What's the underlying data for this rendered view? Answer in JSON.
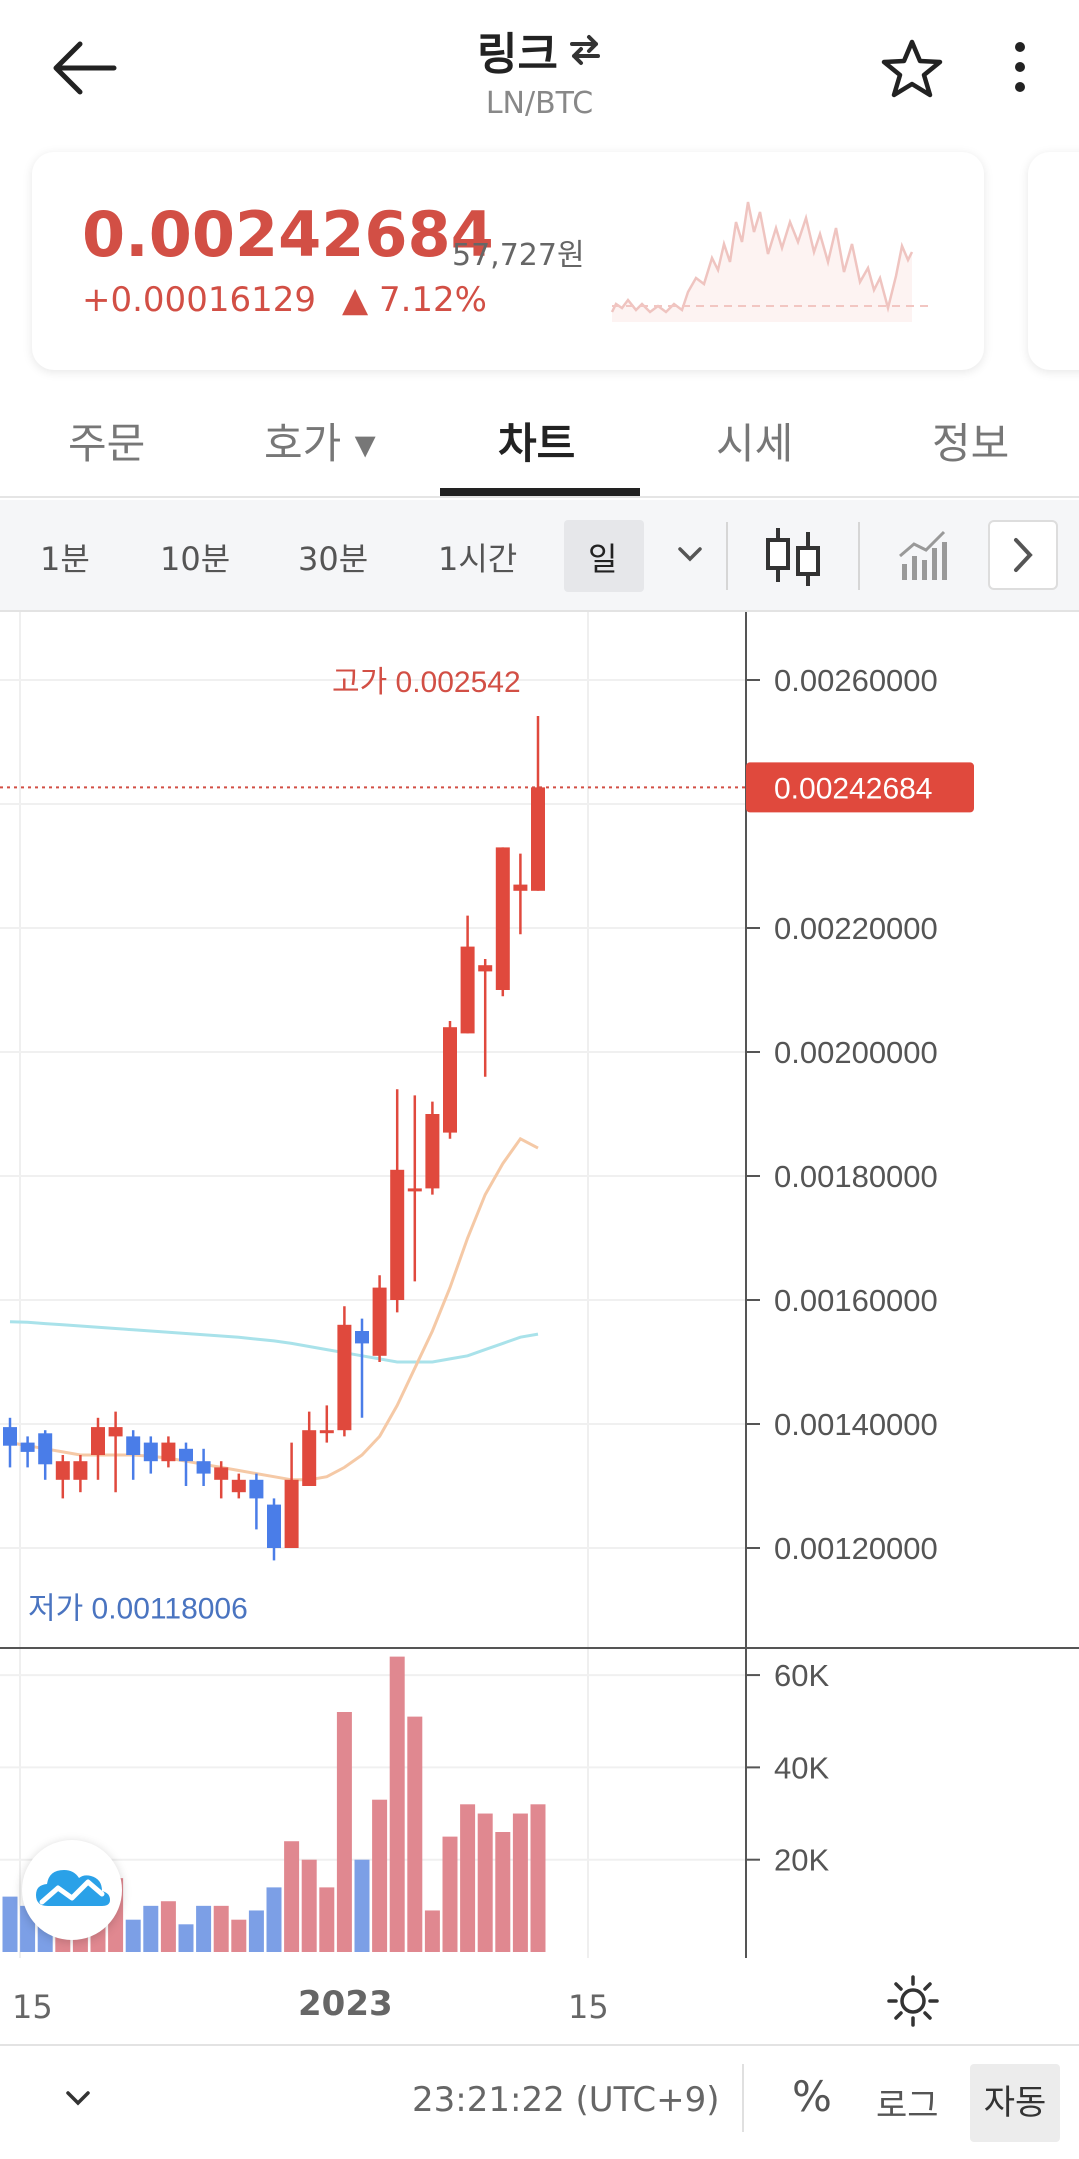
{
  "header": {
    "title": "링크",
    "subtitle": "LN/BTC"
  },
  "price": {
    "current": "0.00242684",
    "krw": "57,727원",
    "change": "+0.00016129",
    "change_pct": "▲ 7.12%"
  },
  "tabs": [
    {
      "label": "주문"
    },
    {
      "label": "호가 ▾"
    },
    {
      "label": "차트",
      "active": true
    },
    {
      "label": "시세"
    },
    {
      "label": "정보"
    }
  ],
  "intervals": [
    {
      "label": "1분"
    },
    {
      "label": "10분"
    },
    {
      "label": "30분"
    },
    {
      "label": "1시간"
    },
    {
      "label": "일",
      "active": true
    }
  ],
  "chart": {
    "high_label": "고가 0.002542",
    "low_label": "저가 0.00118006",
    "current_tag": "0.00242684",
    "price_ticks": [
      "0.00260000",
      "0.00220000",
      "0.00200000",
      "0.00180000",
      "0.00160000",
      "0.00140000",
      "0.00120000"
    ],
    "volume_ticks": [
      "60K",
      "40K",
      "20K"
    ],
    "x_ticks": [
      "15",
      "2023",
      "15"
    ]
  },
  "chart_data": {
    "type": "candlestick",
    "price_range": [
      0.00112,
      0.00265
    ],
    "candles": [
      {
        "o": 0.001395,
        "c": 0.001365,
        "h": 0.00141,
        "l": 0.00133
      },
      {
        "o": 0.00137,
        "c": 0.001355,
        "h": 0.00138,
        "l": 0.00133
      },
      {
        "o": 0.001385,
        "c": 0.001335,
        "h": 0.00139,
        "l": 0.00131
      },
      {
        "o": 0.00131,
        "c": 0.00134,
        "h": 0.00135,
        "l": 0.00128
      },
      {
        "o": 0.00131,
        "c": 0.00134,
        "h": 0.00135,
        "l": 0.00129
      },
      {
        "o": 0.00135,
        "c": 0.001395,
        "h": 0.00141,
        "l": 0.00131
      },
      {
        "o": 0.00138,
        "c": 0.001395,
        "h": 0.00142,
        "l": 0.00129
      },
      {
        "o": 0.00138,
        "c": 0.00135,
        "h": 0.00139,
        "l": 0.00131
      },
      {
        "o": 0.00137,
        "c": 0.00134,
        "h": 0.00138,
        "l": 0.00132
      },
      {
        "o": 0.00134,
        "c": 0.00137,
        "h": 0.00138,
        "l": 0.00133
      },
      {
        "o": 0.00136,
        "c": 0.00134,
        "h": 0.00137,
        "l": 0.0013
      },
      {
        "o": 0.00134,
        "c": 0.00132,
        "h": 0.00136,
        "l": 0.0013
      },
      {
        "o": 0.00131,
        "c": 0.00133,
        "h": 0.00134,
        "l": 0.00128
      },
      {
        "o": 0.00129,
        "c": 0.00131,
        "h": 0.00132,
        "l": 0.00128
      },
      {
        "o": 0.00131,
        "c": 0.00128,
        "h": 0.00132,
        "l": 0.00123
      },
      {
        "o": 0.00127,
        "c": 0.0012,
        "h": 0.00128,
        "l": 0.00118
      },
      {
        "o": 0.0012,
        "c": 0.00131,
        "h": 0.00137,
        "l": 0.0012
      },
      {
        "o": 0.0013,
        "c": 0.00139,
        "h": 0.00142,
        "l": 0.0013
      },
      {
        "o": 0.00139,
        "c": 0.00139,
        "h": 0.00143,
        "l": 0.00137
      },
      {
        "o": 0.00139,
        "c": 0.00156,
        "h": 0.00159,
        "l": 0.00138
      },
      {
        "o": 0.00155,
        "c": 0.00153,
        "h": 0.00157,
        "l": 0.00141
      },
      {
        "o": 0.00151,
        "c": 0.00162,
        "h": 0.00164,
        "l": 0.0015
      },
      {
        "o": 0.0016,
        "c": 0.00181,
        "h": 0.00194,
        "l": 0.00158
      },
      {
        "o": 0.00178,
        "c": 0.00178,
        "h": 0.00193,
        "l": 0.00163
      },
      {
        "o": 0.00178,
        "c": 0.0019,
        "h": 0.00192,
        "l": 0.00177
      },
      {
        "o": 0.00187,
        "c": 0.00204,
        "h": 0.00205,
        "l": 0.00186
      },
      {
        "o": 0.00203,
        "c": 0.00217,
        "h": 0.00222,
        "l": 0.00203
      },
      {
        "o": 0.00213,
        "c": 0.00214,
        "h": 0.00215,
        "l": 0.00196
      },
      {
        "o": 0.0021,
        "c": 0.00233,
        "h": 0.00233,
        "l": 0.00209
      },
      {
        "o": 0.00226,
        "c": 0.00227,
        "h": 0.00232,
        "l": 0.00219
      },
      {
        "o": 0.00226,
        "c": 0.00242684,
        "h": 0.002542,
        "l": 0.00226
      }
    ],
    "volume": [
      12,
      10,
      8,
      9,
      10,
      11,
      16,
      7,
      10,
      11,
      6,
      10,
      10,
      7,
      9,
      14,
      24,
      20,
      14,
      52,
      20,
      33,
      64,
      51,
      9,
      25,
      32,
      30,
      26,
      30,
      32
    ],
    "volume_range": [
      0,
      65
    ],
    "ma_short": [
      0.00137,
      0.001365,
      0.00136,
      0.001355,
      0.00135,
      0.00135,
      0.00135,
      0.00135,
      0.001348,
      0.001345,
      0.00134,
      0.001335,
      0.00133,
      0.001325,
      0.00132,
      0.001315,
      0.00131,
      0.00131,
      0.001315,
      0.00133,
      0.00135,
      0.00138,
      0.00143,
      0.00149,
      0.00155,
      0.00162,
      0.0017,
      0.00177,
      0.00182,
      0.00186,
      0.001845
    ],
    "ma_long": [
      0.001565,
      0.001564,
      0.001562,
      0.00156,
      0.001558,
      0.001556,
      0.001554,
      0.001552,
      0.00155,
      0.001548,
      0.001546,
      0.001544,
      0.001542,
      0.00154,
      0.001537,
      0.001534,
      0.00153,
      0.001525,
      0.00152,
      0.001515,
      0.00151,
      0.001505,
      0.0015,
      0.0015,
      0.0015,
      0.001505,
      0.00151,
      0.00152,
      0.00153,
      0.00154,
      0.001545
    ]
  },
  "bottom": {
    "time": "23:21:22 (UTC+9)",
    "percent": "%",
    "log": "로그",
    "auto": "자동"
  },
  "colors": {
    "up": "#e0493d",
    "down": "#4a7de8",
    "ma_short": "#f5c9a6",
    "ma_long": "#a9e2ea",
    "vol_up": "#e08890",
    "vol_down": "#7c9fe6"
  }
}
